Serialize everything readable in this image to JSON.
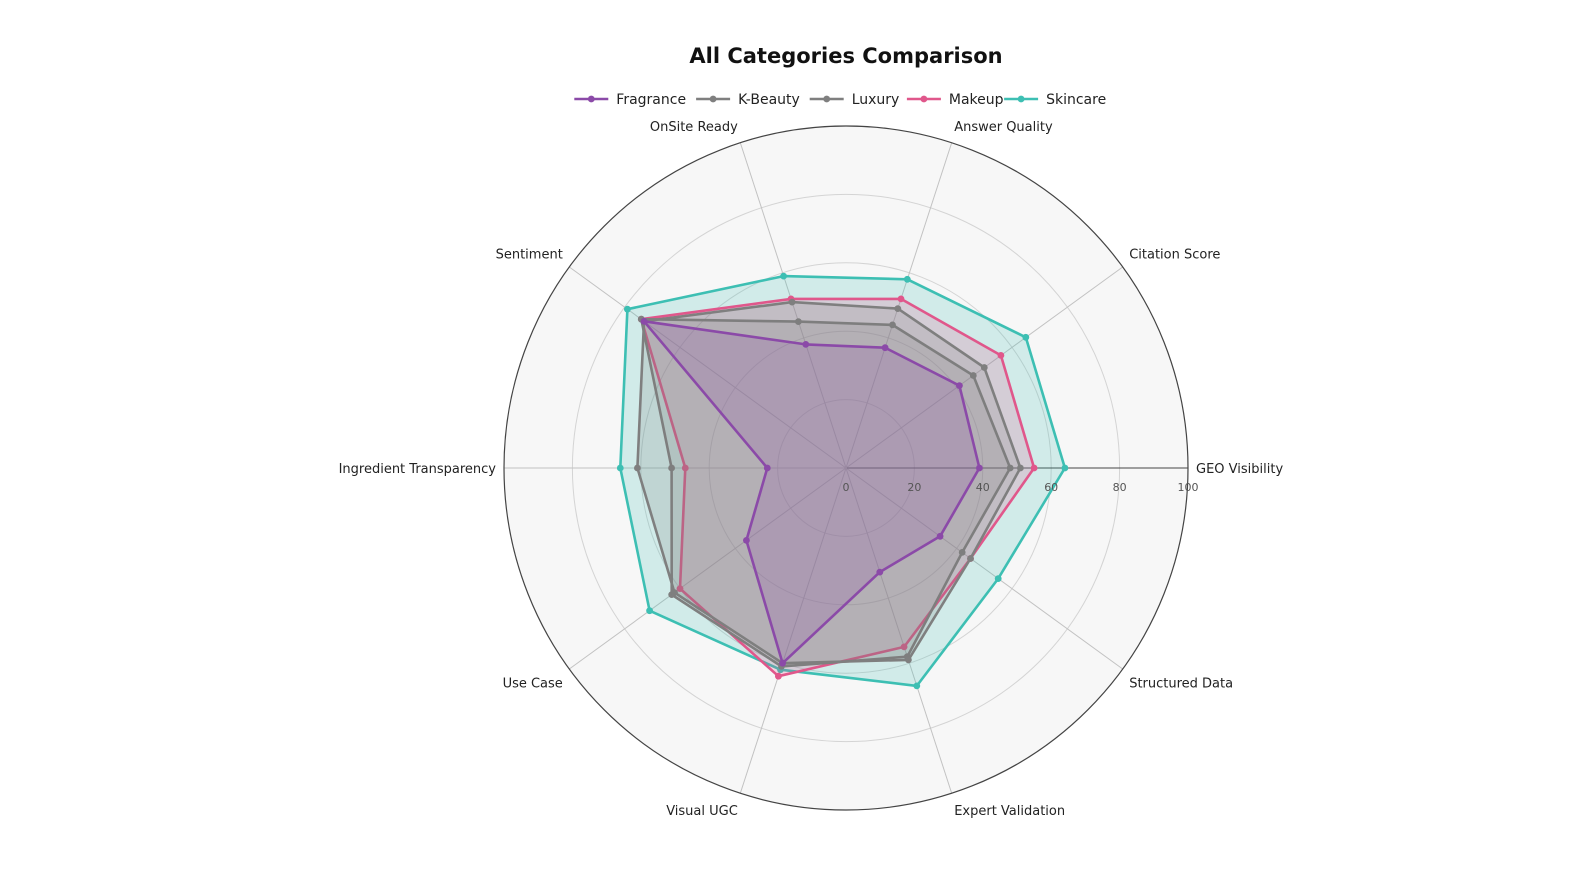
{
  "chart_data": {
    "type": "radar",
    "title": "All Categories Comparison",
    "axes": [
      "GEO Visibility",
      "Citation Score",
      "Answer Quality",
      "OnSite Ready",
      "Sentiment",
      "Ingredient Transparency",
      "Use Case",
      "Visual UGC",
      "Expert Validation",
      "Structured Data"
    ],
    "radial_range": [
      0,
      100
    ],
    "radial_ticks": [
      0,
      20,
      40,
      60,
      80,
      100
    ],
    "grid": true,
    "legend_position": "top-center",
    "series": [
      {
        "name": "Skincare",
        "color": "#3dbfb3",
        "values": [
          64,
          65,
          58,
          59,
          79,
          66,
          71,
          62,
          67,
          55
        ]
      },
      {
        "name": "Makeup",
        "color": "#e0578b",
        "values": [
          55,
          56,
          52,
          52,
          74,
          47,
          60,
          64,
          55,
          45
        ]
      },
      {
        "name": "Luxury",
        "color": "#7f7f7f",
        "values": [
          48,
          46,
          44,
          45,
          74,
          51,
          63,
          61,
          58,
          42
        ]
      },
      {
        "name": "K-Beauty",
        "color": "#7f7f7f",
        "values": [
          51,
          50,
          49,
          51,
          73,
          61,
          62,
          60,
          59,
          45
        ]
      },
      {
        "name": "Fragrance",
        "color": "#8b4aa8",
        "values": [
          39,
          41,
          37,
          38,
          73,
          23,
          36,
          60,
          32,
          34
        ]
      }
    ],
    "legend_order": [
      "Fragrance",
      "K-Beauty",
      "Luxury",
      "Makeup",
      "Skincare"
    ]
  }
}
